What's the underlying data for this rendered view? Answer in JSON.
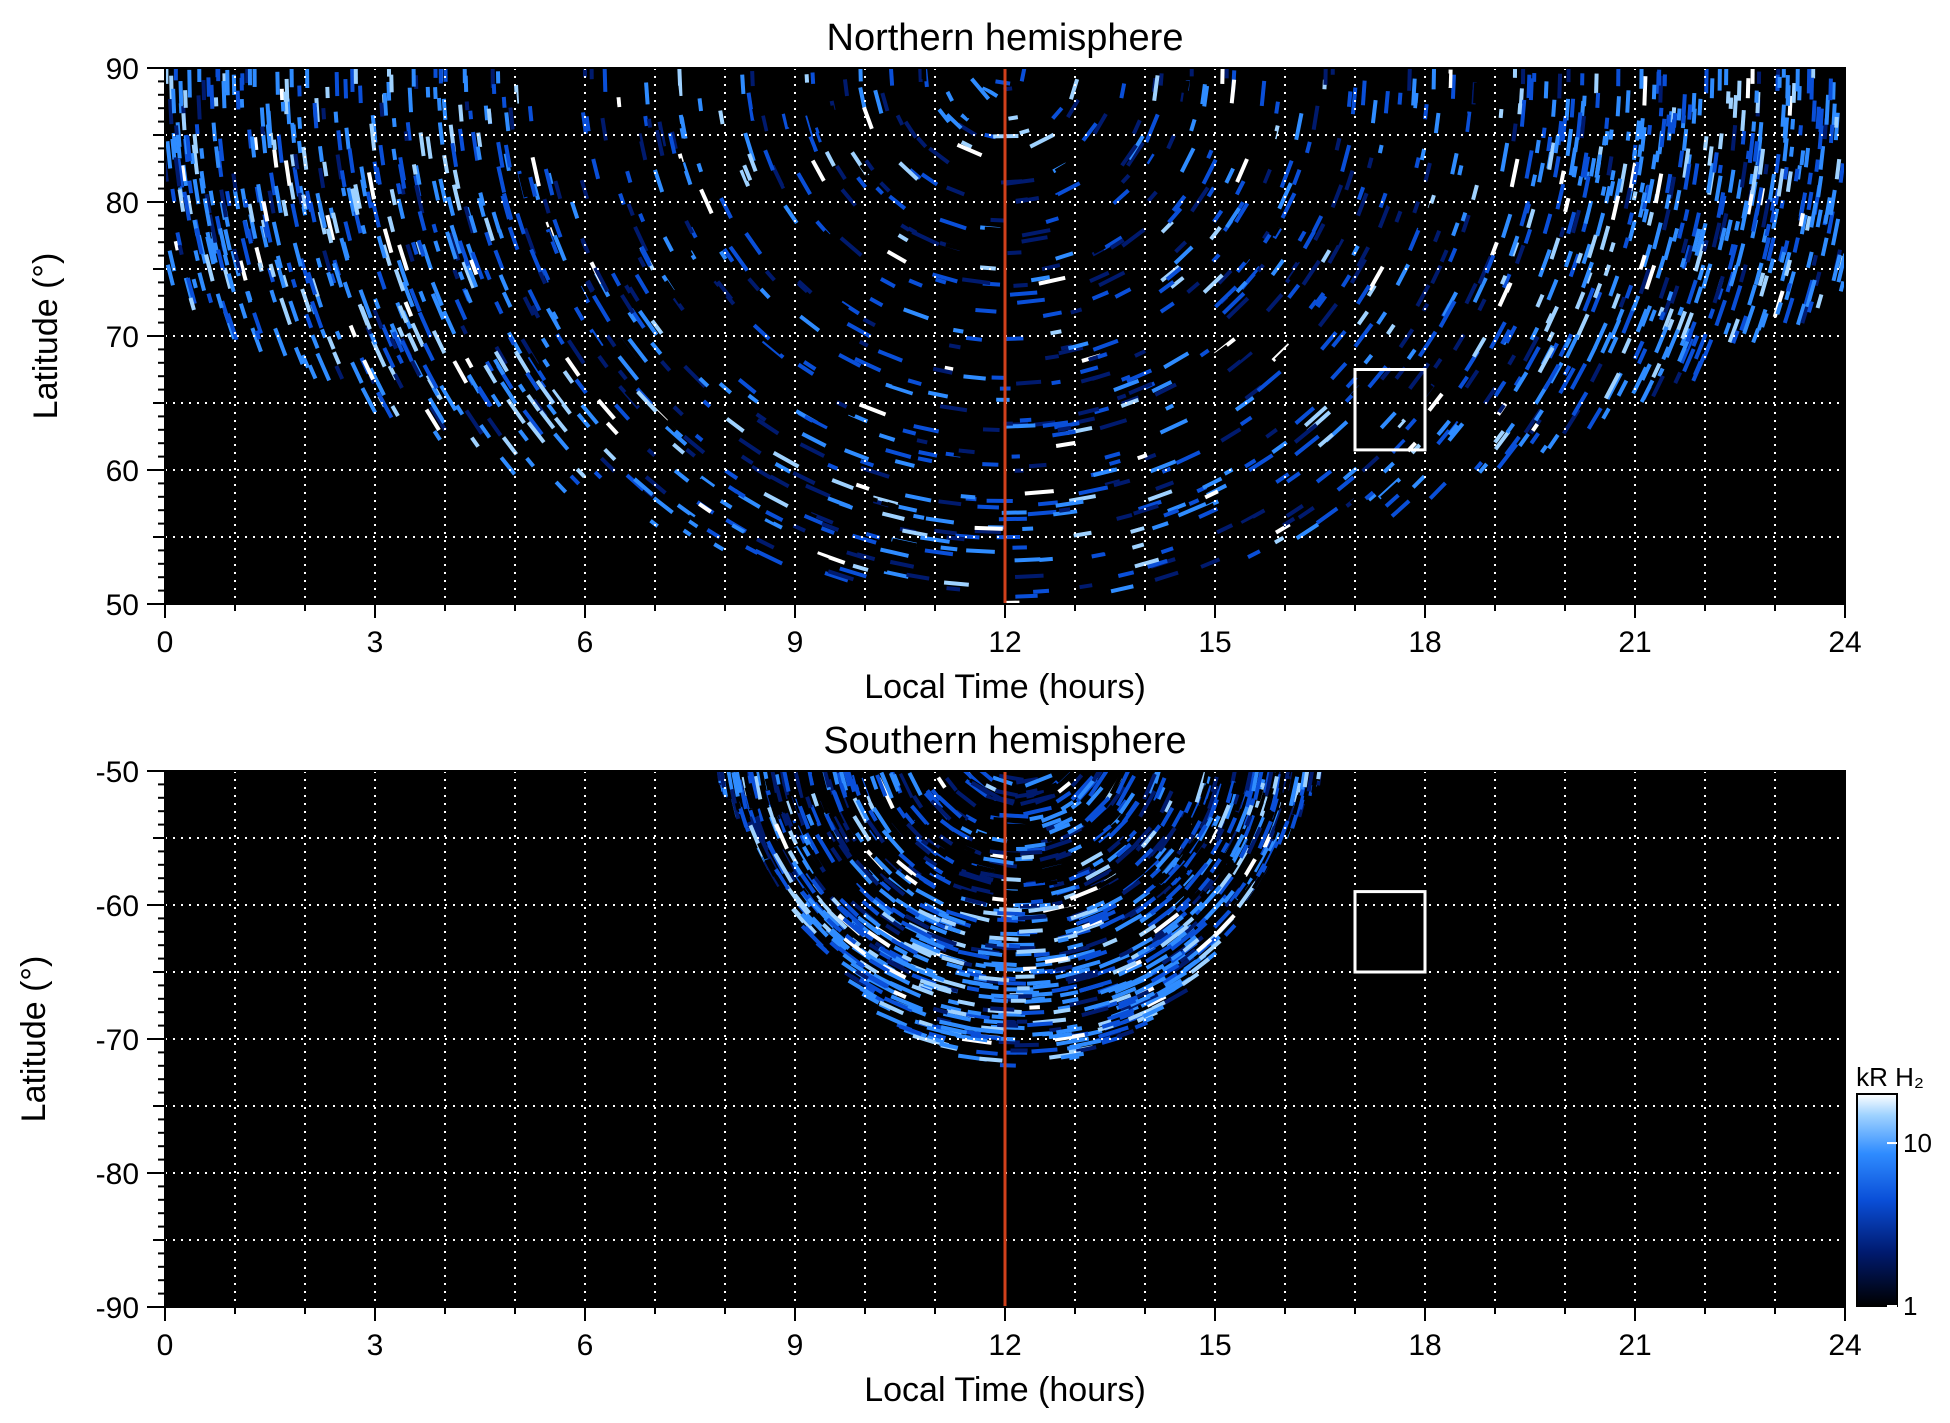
{
  "chart_data": [
    {
      "type": "heatmap",
      "title": "Northern hemisphere",
      "xlabel": "Local Time (hours)",
      "ylabel": "Latitude (°)",
      "xlim": [
        0,
        24
      ],
      "ylim": [
        50,
        90
      ],
      "xticks": [
        "0",
        "3",
        "6",
        "9",
        "12",
        "15",
        "18",
        "21",
        "24"
      ],
      "yticks": [
        "50",
        "60",
        "70",
        "80",
        "90"
      ],
      "x_major_step": 3,
      "x_grid_step": 1,
      "y_grid_step": 5,
      "grid": true,
      "reference_line": {
        "local_time": 12,
        "color": "#d0401b"
      },
      "highlight_box": {
        "x": [
          17,
          18
        ],
        "y": [
          61.5,
          67.5
        ]
      },
      "coverage": {
        "center_lt": 12,
        "center_lat": 90,
        "colatitude_edge_lt0": 16.5,
        "colatitude_edge_lt12": 40
      },
      "bright_bands": [
        {
          "lt_start": 0,
          "lt_end": 5
        },
        {
          "lt_start": 19,
          "lt_end": 24
        }
      ]
    },
    {
      "type": "heatmap",
      "title": "Southern hemisphere",
      "xlabel": "Local Time (hours)",
      "ylabel": "Latitude (°)",
      "xlim": [
        0,
        24
      ],
      "ylim": [
        -90,
        -50
      ],
      "xticks": [
        "0",
        "3",
        "6",
        "9",
        "12",
        "15",
        "18",
        "21",
        "24"
      ],
      "yticks": [
        "-90",
        "-80",
        "-70",
        "-60",
        "-50"
      ],
      "x_major_step": 3,
      "x_grid_step": 1,
      "y_grid_step": 5,
      "grid": true,
      "reference_line": {
        "local_time": 12,
        "color": "#d0401b"
      },
      "highlight_box": {
        "x": [
          17,
          18
        ],
        "y": [
          -65,
          -59
        ]
      },
      "coverage": {
        "center_lt": 12.2,
        "lat_min": -72,
        "lt_range": [
          7.9,
          16.5
        ]
      }
    }
  ],
  "colorbar": {
    "label": "kR H₂",
    "scale": "log",
    "range": [
      1,
      20
    ],
    "tick_labels": [
      "1",
      "10"
    ],
    "tick_values": [
      1,
      10
    ],
    "colors": [
      "#000000",
      "#001a6e",
      "#0a4fd8",
      "#2f8cff",
      "#9fd2ff",
      "#ffffff"
    ]
  }
}
